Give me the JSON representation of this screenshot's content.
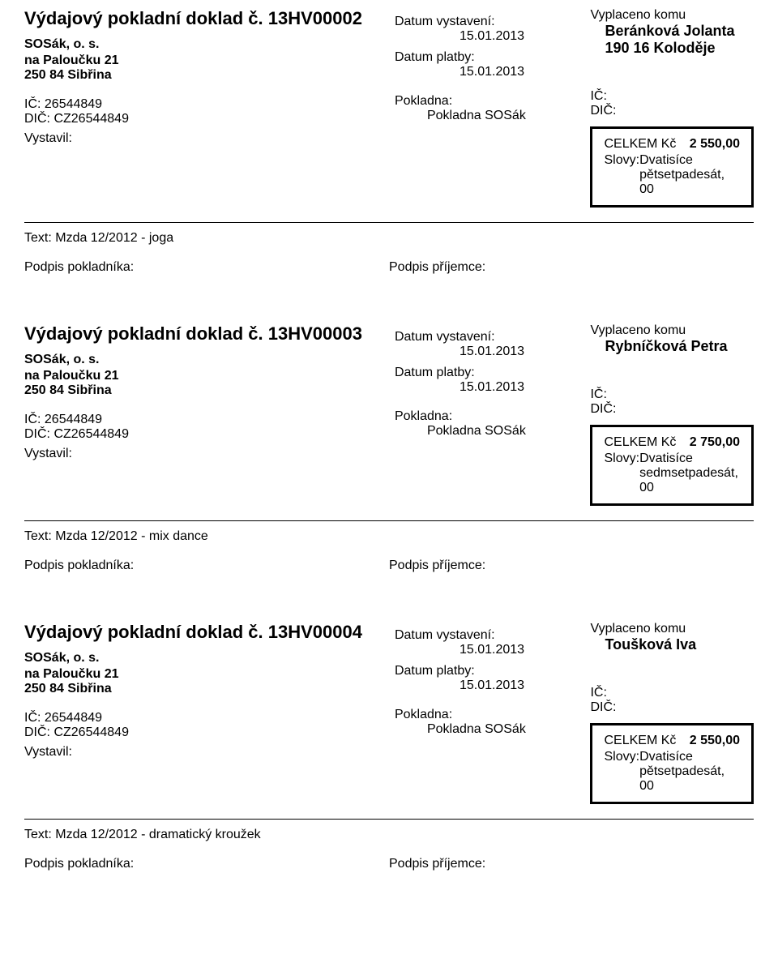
{
  "labels": {
    "doc_title_prefix": "Výdajový pokladní doklad č. ",
    "date_issue": "Datum vystavení:",
    "date_payment": "Datum platby:",
    "pokladna": "Pokladna:",
    "vystavil": "Vystavil:",
    "paid_to": "Vyplaceno komu",
    "ic": "IČ:",
    "dic": "DIČ:",
    "total": "CELKEM Kč",
    "words": "Slovy:",
    "text_prefix": "Text: ",
    "sign_cashier": "Podpis pokladníka:",
    "sign_recipient": "Podpis příjemce:"
  },
  "issuer": {
    "org": "SOSák, o. s.",
    "addr1": "na Paloučku  21",
    "addr2": "250 84 Sibřina",
    "ic": "IČ: 26544849",
    "dic": "DIČ: CZ26544849",
    "pokladna_name": "Pokladna SOSák"
  },
  "receipts": [
    {
      "number": "13HV00002",
      "date_issue": "15.01.2013",
      "date_payment": "15.01.2013",
      "payee_name": "Beránková Jolanta",
      "payee_addr": "190 16 Koloděje",
      "amount": "2 550,00",
      "amount_words": "Dvatisíce pětsetpadesát, 00",
      "note": "Mzda 12/2012 - joga"
    },
    {
      "number": "13HV00003",
      "date_issue": "15.01.2013",
      "date_payment": "15.01.2013",
      "payee_name": "Rybníčková Petra",
      "payee_addr": "",
      "amount": "2 750,00",
      "amount_words": "Dvatisíce sedmsetpadesát, 00",
      "note": "Mzda 12/2012 - mix dance"
    },
    {
      "number": "13HV00004",
      "date_issue": "15.01.2013",
      "date_payment": "15.01.2013",
      "payee_name": "Toušková Iva",
      "payee_addr": "",
      "amount": "2 550,00",
      "amount_words": "Dvatisíce pětsetpadesát, 00",
      "note": "Mzda 12/2012 - dramatický kroužek"
    }
  ]
}
